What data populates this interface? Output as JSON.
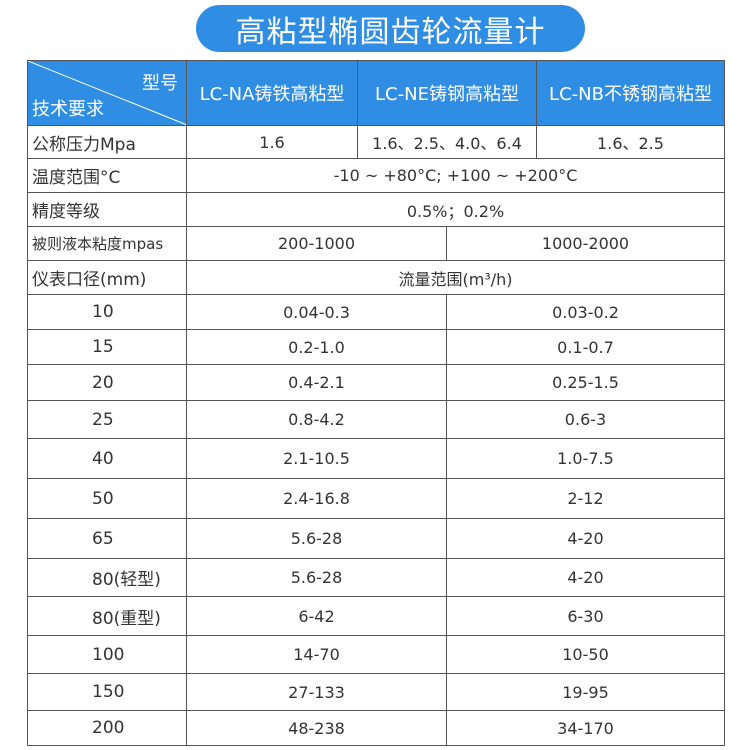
{
  "title": "高粘型椭圆齿轮流量计",
  "header": {
    "corner_top": "型号",
    "corner_bottom": "技术要求",
    "models": [
      "LC-NA铸铁高粘型",
      "LC-NE铸钢高粘型",
      "LC-NB不锈钢高粘型"
    ]
  },
  "specs": {
    "pressure": {
      "label": "公称压力Mpa",
      "values": [
        "1.6",
        "1.6、2.5、4.0、6.4",
        "1.6、2.5"
      ]
    },
    "temperature": {
      "label": "温度范围°C",
      "value": "-10 ~ +80°C;  +100 ~ +200°C"
    },
    "accuracy": {
      "label": "精度等级",
      "value": "0.5%；0.2%"
    },
    "viscosity": {
      "label": "被则液本粘度mpas",
      "values": [
        "200-1000",
        "1000-2000"
      ]
    },
    "diameter": {
      "label": "仪表口径(mm)",
      "value": "流量范围(m³/h)"
    }
  },
  "rows": [
    [
      "10",
      "0.04-0.3",
      "0.03-0.2"
    ],
    [
      "15",
      "0.2-1.0",
      "0.1-0.7"
    ],
    [
      "20",
      "0.4-2.1",
      "0.25-1.5"
    ],
    [
      "25",
      "0.8-4.2",
      "0.6-3"
    ],
    [
      "40",
      "2.1-10.5",
      "1.0-7.5"
    ],
    [
      "50",
      "2.4-16.8",
      "2-12"
    ],
    [
      "65",
      "5.6-28",
      "4-20"
    ],
    [
      "80(轻型)",
      "5.6-28",
      "4-20"
    ],
    [
      "80(重型)",
      "6-42",
      "6-30"
    ],
    [
      "100",
      "14-70",
      "10-50"
    ],
    [
      "150",
      "27-133",
      "19-95"
    ],
    [
      "200",
      "48-238",
      "34-170"
    ]
  ],
  "colors": {
    "accent": "#2f8de4"
  }
}
